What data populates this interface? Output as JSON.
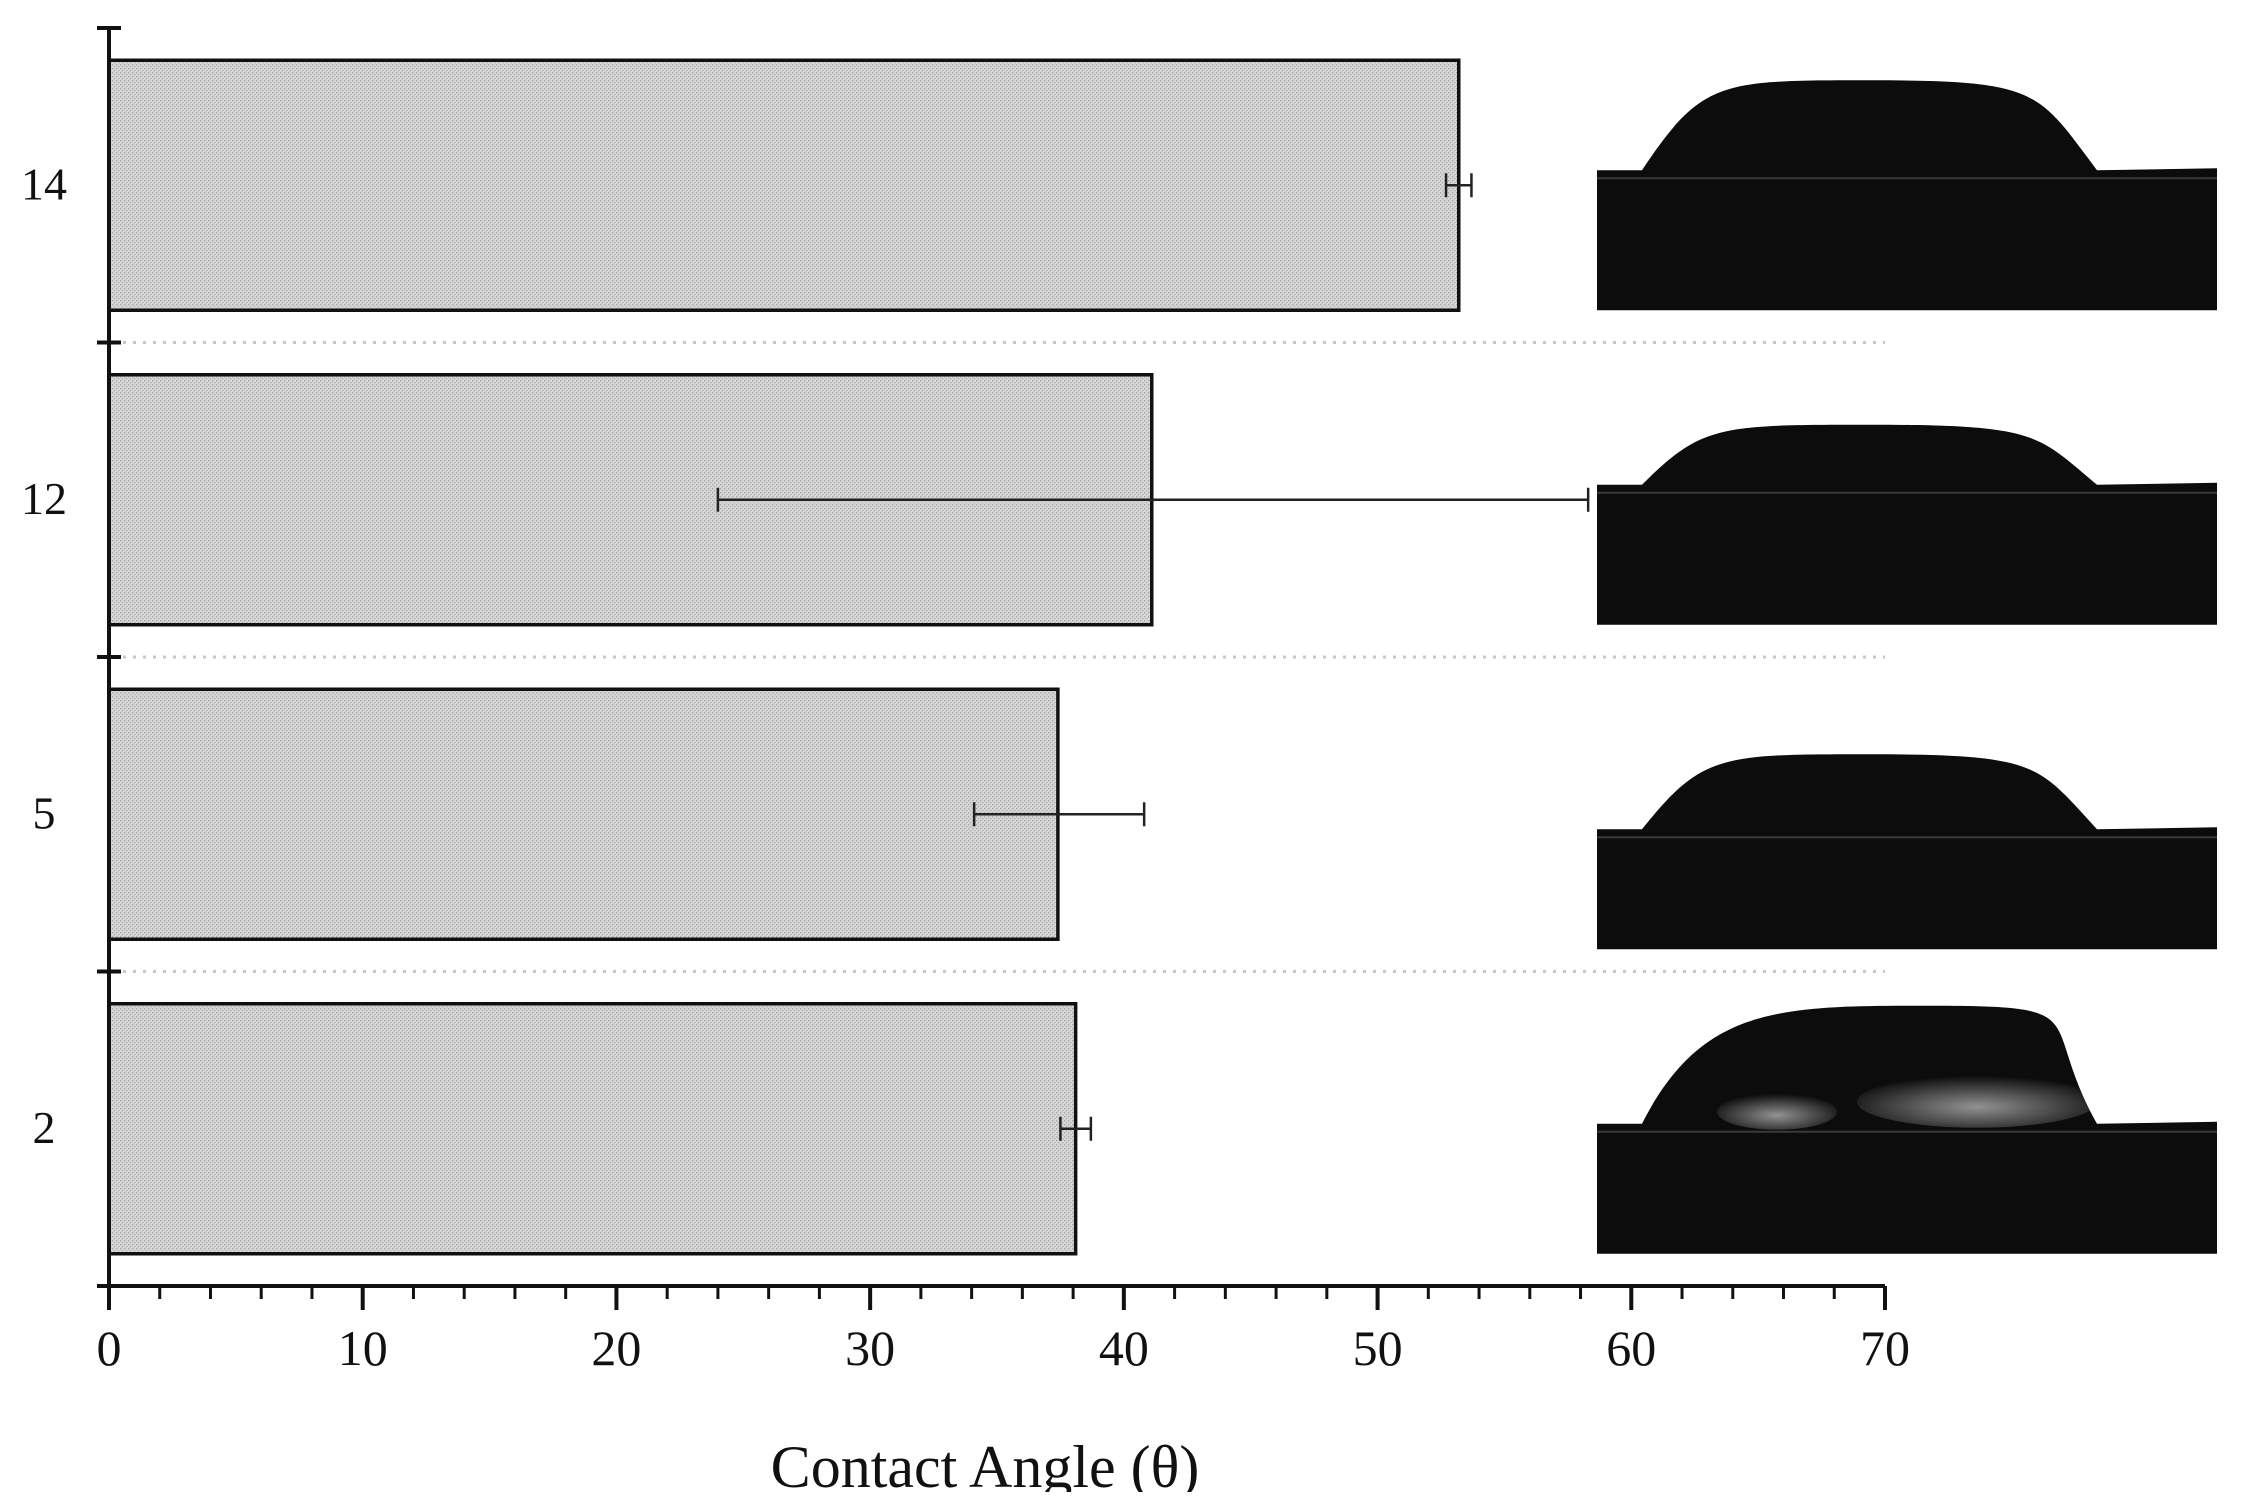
{
  "chart_data": {
    "type": "bar",
    "orientation": "horizontal",
    "xlabel": "Contact Angle (θ)",
    "ylabel": "",
    "xlim": [
      0,
      70
    ],
    "x_ticks": [
      0,
      10,
      20,
      30,
      40,
      50,
      60,
      70
    ],
    "x_minor_step": 2,
    "grid": false,
    "categories": [
      "14",
      "12",
      "5",
      "2"
    ],
    "values": [
      53.2,
      41.1,
      37.4,
      38.1
    ],
    "error_low": [
      52.7,
      24.0,
      34.1,
      37.5
    ],
    "error_high": [
      53.7,
      58.3,
      40.8,
      38.7
    ],
    "bar_fill": "#d2d2d2",
    "bar_stroke": "#111111",
    "drop_image_color": "#0c0c0c",
    "separator_color": "#c8c8c8",
    "insets": [
      {
        "category": "14",
        "icon": "droplet-profile-image"
      },
      {
        "category": "12",
        "icon": "droplet-profile-image"
      },
      {
        "category": "5",
        "icon": "droplet-profile-image"
      },
      {
        "category": "2",
        "icon": "droplet-profile-image"
      }
    ]
  }
}
